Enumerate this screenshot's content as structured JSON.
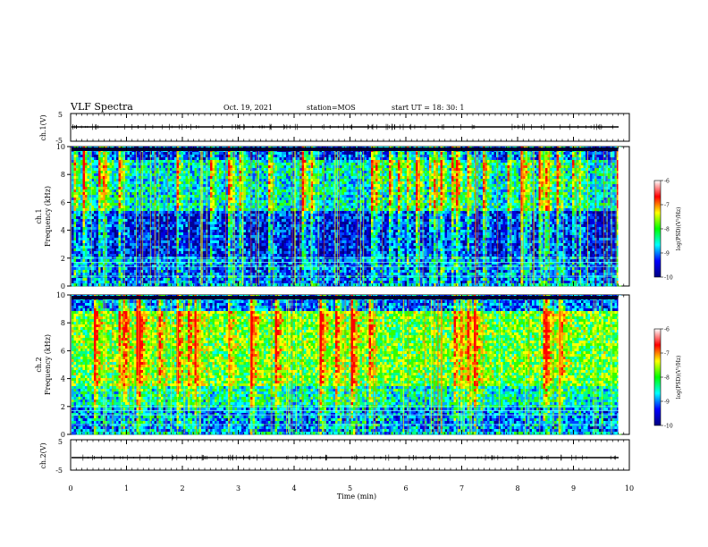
{
  "header": {
    "title": "VLF Spectra",
    "date": "Oct. 19, 2021",
    "station": "station=MOS",
    "start": "start  UT =   18: 30: 1"
  },
  "chart_data": {
    "type": "heatmap",
    "xlabel": "Time  (min)",
    "x_ticks": [
      "0",
      "1",
      "2",
      "3",
      "4",
      "5",
      "6",
      "7",
      "8",
      "9",
      "10"
    ],
    "xlim": [
      0,
      10
    ],
    "data_end_min": 9.8,
    "panels": [
      {
        "id": "ch1_wave",
        "kind": "waveform",
        "ylabel": "ch.1(V)",
        "ylim": [
          -5,
          5
        ],
        "y_ticks": [
          "5",
          "-5"
        ]
      },
      {
        "id": "ch1_spec",
        "kind": "spectrogram",
        "ylabel_top": "ch.1",
        "ylabel": "Frequency  (kHz)",
        "ylim": [
          0,
          10
        ],
        "y_ticks": [
          "0",
          "2",
          "4",
          "6",
          "8",
          "10"
        ]
      },
      {
        "id": "ch2_spec",
        "kind": "spectrogram",
        "ylabel_top": "ch.2",
        "ylabel": "Frequency  (kHz)",
        "ylim": [
          0,
          10
        ],
        "y_ticks": [
          "0",
          "2",
          "4",
          "6",
          "8",
          "10"
        ]
      },
      {
        "id": "ch2_wave",
        "kind": "waveform",
        "ylabel": "ch.2(V)",
        "ylim": [
          -5,
          5
        ],
        "y_ticks": [
          "5",
          "-5"
        ]
      }
    ],
    "colorbar": {
      "label": "log(PSD)(V²/Hz)",
      "range": [
        -10,
        -6
      ],
      "ticks": [
        "-6",
        "-7",
        "-8",
        "-9",
        "-10"
      ],
      "colors": [
        "#000080",
        "#0000ff",
        "#00ffff",
        "#00ff00",
        "#ffff00",
        "#ff0000",
        "#ffffff"
      ]
    }
  }
}
